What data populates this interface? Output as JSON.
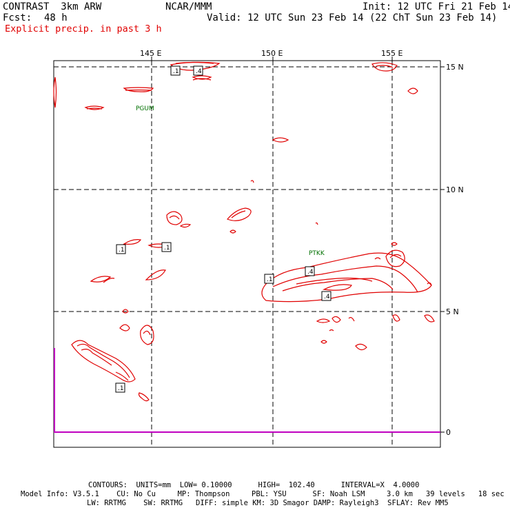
{
  "header": {
    "model": "CONTRAST  3km ARW",
    "center": "NCAR/MMM",
    "init": "Init: 12 UTC Fri 21 Feb 14",
    "fcst_label": "Fcst:",
    "fcst_value": "48 h",
    "valid": "Valid: 12 UTC Sun 23 Feb 14 (22 ChT Sun 23 Feb 14)",
    "field": "Explicit precip. in past 3 h"
  },
  "map": {
    "lon_labels": [
      "145 E",
      "150 E",
      "155 E"
    ],
    "lat_labels": [
      "15 N",
      "10 N",
      "5 N",
      "0"
    ],
    "stations": [
      "PGUM",
      "PTKK"
    ],
    "contour_labels": [
      ".1",
      ".4",
      ".1",
      ".1",
      ".1",
      ".4",
      ".4",
      ".1"
    ],
    "colors": {
      "contour": "#e00000",
      "grid": "#000000",
      "equator": "#c000c0",
      "station": "#007000"
    }
  },
  "footer": {
    "contours": "CONTOURS:  UNITS=mm  LOW= 0.10000      HIGH=  102.40      INTERVAL=X  4.0000",
    "model_info_1": "Model Info: V3.5.1    CU: No Cu     MP: Thompson     PBL: YSU      SF: Noah LSM     3.0 km   39 levels   18 sec",
    "model_info_2": "LW: RRTMG    SW: RRTMG   DIFF: simple KM: 3D Smagor DAMP: Rayleigh3  SFLAY: Rev MM5"
  }
}
